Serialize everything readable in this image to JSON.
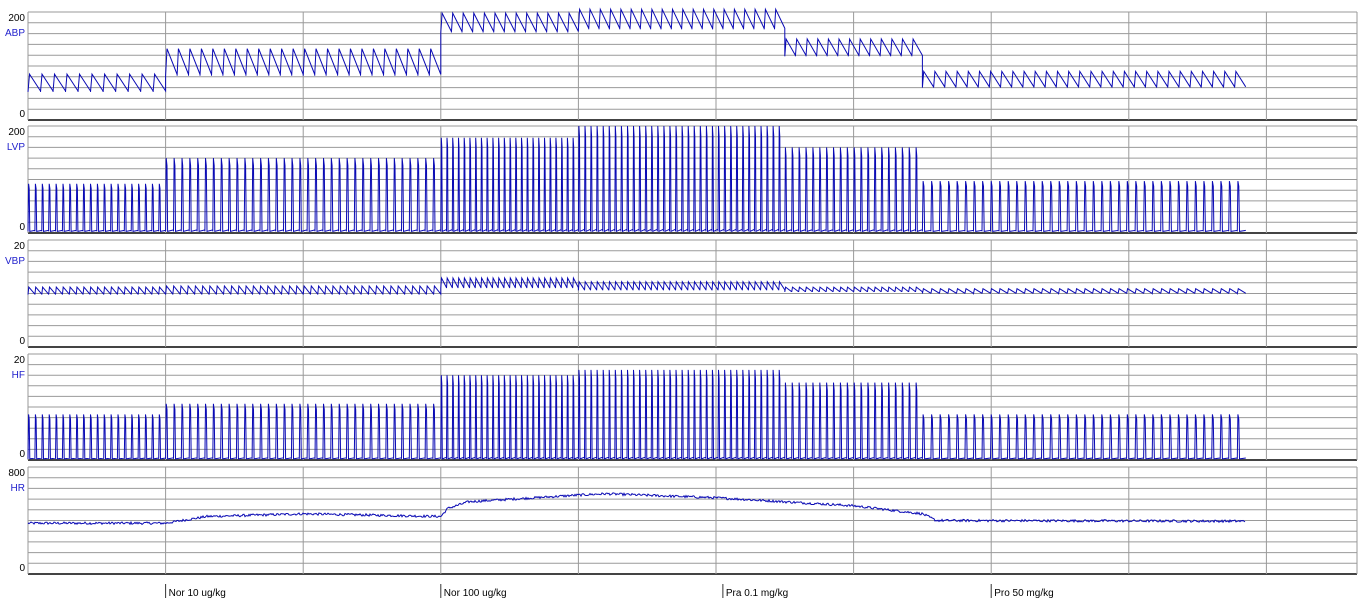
{
  "chart_data": {
    "type": "line",
    "trace_color": "#0a0ab4",
    "grid": true,
    "time_divisions": 9,
    "channels": [
      {
        "name": "ABP",
        "y_max_label": "200",
        "y_min_label": "0",
        "ylim": [
          0,
          200
        ],
        "waveform": "sawtooth",
        "segments": [
          {
            "range": [
              0,
              1
            ],
            "beats": 11,
            "min": 52,
            "max": 85
          },
          {
            "range": [
              1,
              3
            ],
            "beats": 24,
            "min": 82,
            "max": 132
          },
          {
            "range": [
              3,
              4
            ],
            "beats": 13,
            "min": 162,
            "max": 198
          },
          {
            "range": [
              4,
              5.5
            ],
            "beats": 20,
            "min": 168,
            "max": 205
          },
          {
            "range": [
              5.5,
              6.5
            ],
            "beats": 13,
            "min": 118,
            "max": 150
          },
          {
            "range": [
              6.5,
              8.85
            ],
            "beats": 29,
            "min": 60,
            "max": 90
          }
        ]
      },
      {
        "name": "LVP",
        "y_max_label": "200",
        "y_min_label": "0",
        "ylim": [
          0,
          200
        ],
        "waveform": "spike",
        "segments": [
          {
            "range": [
              0,
              1
            ],
            "beats": 20,
            "min": 3,
            "max": 92
          },
          {
            "range": [
              1,
              3
            ],
            "beats": 35,
            "min": 3,
            "max": 140
          },
          {
            "range": [
              3,
              4
            ],
            "beats": 24,
            "min": 3,
            "max": 178
          },
          {
            "range": [
              4,
              5.5
            ],
            "beats": 34,
            "min": 3,
            "max": 200
          },
          {
            "range": [
              5.5,
              6.5
            ],
            "beats": 20,
            "min": 3,
            "max": 160
          },
          {
            "range": [
              6.5,
              8.85
            ],
            "beats": 38,
            "min": 3,
            "max": 97
          }
        ]
      },
      {
        "name": "VBP",
        "y_max_label": "20",
        "y_min_label": "0",
        "ylim": [
          0,
          20
        ],
        "waveform": "sawtooth_small",
        "segments": [
          {
            "range": [
              0,
              1
            ],
            "beats": 20,
            "min": 9.8,
            "max": 11.2
          },
          {
            "range": [
              1,
              3
            ],
            "beats": 38,
            "min": 9.8,
            "max": 11.4
          },
          {
            "range": [
              3,
              4
            ],
            "beats": 24,
            "min": 11.0,
            "max": 12.9
          },
          {
            "range": [
              4,
              5.5
            ],
            "beats": 34,
            "min": 10.6,
            "max": 12.2
          },
          {
            "range": [
              5.5,
              6.5
            ],
            "beats": 20,
            "min": 10.3,
            "max": 11.2
          },
          {
            "range": [
              6.5,
              8.85
            ],
            "beats": 38,
            "min": 10.0,
            "max": 10.9
          }
        ]
      },
      {
        "name": "HF",
        "y_max_label": "20",
        "y_min_label": "0",
        "ylim": [
          0,
          20
        ],
        "waveform": "spike",
        "segments": [
          {
            "range": [
              0,
              1
            ],
            "beats": 20,
            "min": 0.2,
            "max": 8.6
          },
          {
            "range": [
              1,
              3
            ],
            "beats": 35,
            "min": 0.2,
            "max": 10.6
          },
          {
            "range": [
              3,
              4
            ],
            "beats": 24,
            "min": 0.2,
            "max": 16.0
          },
          {
            "range": [
              4,
              5.5
            ],
            "beats": 34,
            "min": 0.2,
            "max": 17.0
          },
          {
            "range": [
              5.5,
              6.5
            ],
            "beats": 20,
            "min": 0.2,
            "max": 14.6
          },
          {
            "range": [
              6.5,
              8.85
            ],
            "beats": 38,
            "min": 0.2,
            "max": 8.6
          }
        ]
      },
      {
        "name": "HR",
        "y_max_label": "800",
        "y_min_label": "0",
        "ylim": [
          0,
          800
        ],
        "waveform": "noisy",
        "points": [
          [
            0,
            380
          ],
          [
            1,
            380
          ],
          [
            1.3,
            430
          ],
          [
            2,
            450
          ],
          [
            3,
            430
          ],
          [
            3.05,
            490
          ],
          [
            3.2,
            540
          ],
          [
            4,
            590
          ],
          [
            4.2,
            600
          ],
          [
            5,
            570
          ],
          [
            6,
            510
          ],
          [
            6.5,
            450
          ],
          [
            6.6,
            400
          ],
          [
            8.85,
            395
          ]
        ]
      }
    ],
    "markers": [
      {
        "label": "Nor 10 ug/kg",
        "x": 1
      },
      {
        "label": "Nor 100 ug/kg",
        "x": 3
      },
      {
        "label": "Pra 0.1 mg/kg",
        "x": 5.05
      },
      {
        "label": "Pro 50 mg/kg",
        "x": 7
      }
    ]
  }
}
